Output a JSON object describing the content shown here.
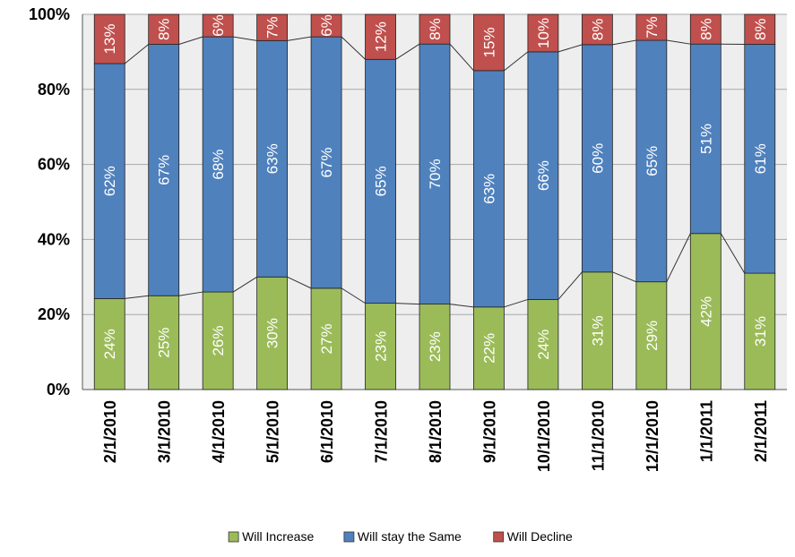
{
  "chart_data": {
    "type": "bar",
    "stacked": true,
    "categories": [
      "2/1/2010",
      "3/1/2010",
      "4/1/2010",
      "5/1/2010",
      "6/1/2010",
      "7/1/2010",
      "8/1/2010",
      "9/1/2010",
      "10/1/2010",
      "11/1/2010",
      "12/1/2010",
      "1/1/2011",
      "2/1/2011"
    ],
    "series": [
      {
        "name": "Will Increase",
        "color": "#9bbb59",
        "values": [
          24,
          25,
          26,
          30,
          27,
          23,
          23,
          22,
          24,
          31,
          29,
          42,
          31
        ],
        "labels": [
          "24%",
          "25%",
          "26%",
          "30%",
          "27%",
          "23%",
          "23%",
          "22%",
          "24%",
          "31%",
          "29%",
          "42%",
          "31%"
        ]
      },
      {
        "name": "Will stay the Same",
        "color": "#4f81bd",
        "values": [
          62,
          67,
          68,
          63,
          67,
          65,
          70,
          63,
          66,
          60,
          65,
          51,
          61
        ],
        "labels": [
          "62%",
          "67%",
          "68%",
          "63%",
          "67%",
          "65%",
          "70%",
          "63%",
          "66%",
          "60%",
          "65%",
          "51%",
          "61%"
        ]
      },
      {
        "name": "Will Decline",
        "color": "#c0504d",
        "values": [
          13,
          8,
          6,
          7,
          6,
          12,
          8,
          15,
          10,
          8,
          7,
          8,
          8
        ],
        "labels": [
          "13%",
          "8%",
          "6%",
          "7%",
          "6%",
          "12%",
          "8%",
          "15%",
          "10%",
          "8%",
          "7%",
          "8%",
          "8%"
        ]
      }
    ],
    "yticks": [
      "0%",
      "20%",
      "40%",
      "60%",
      "80%",
      "100%"
    ],
    "ylim": [
      0,
      100
    ],
    "grid": true,
    "series_lines": true,
    "legend_position": "bottom",
    "plot_background": "#eeeeee",
    "gridline_color": "#aaaaaa"
  }
}
